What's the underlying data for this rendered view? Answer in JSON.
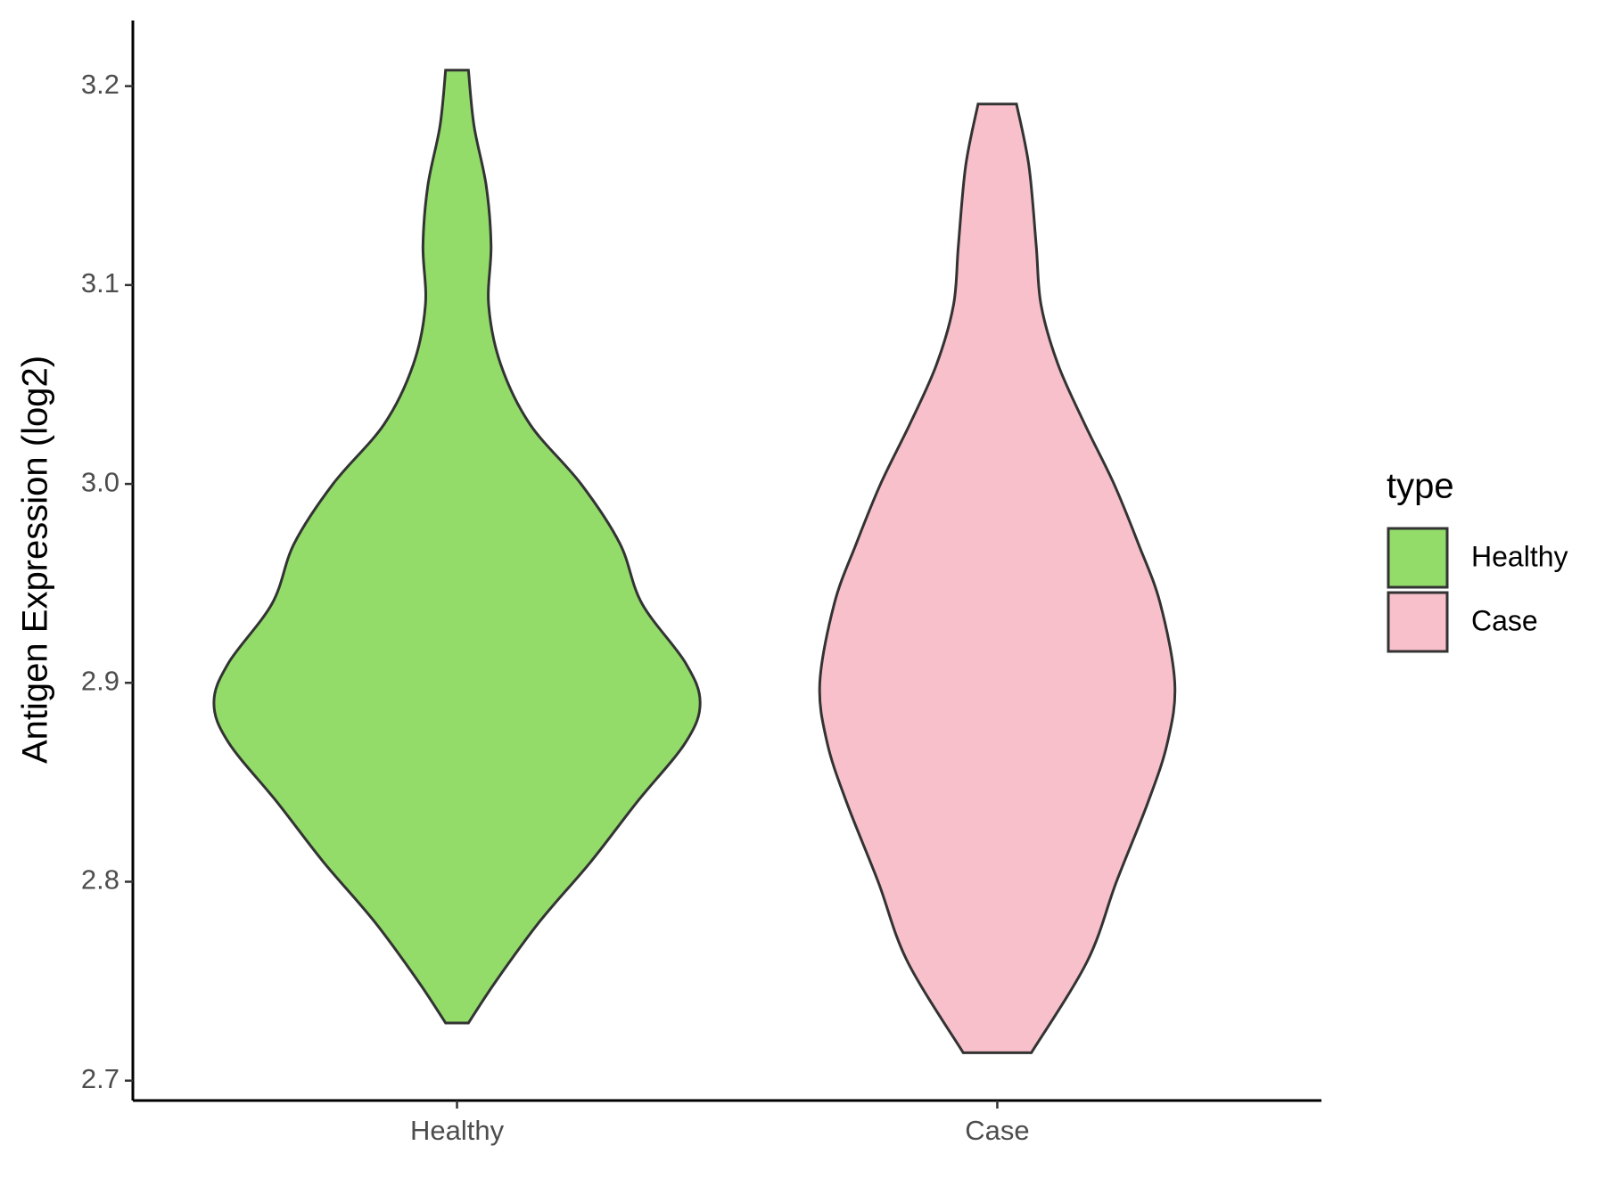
{
  "chart_data": {
    "type": "violin",
    "y_label": "Antigen Expression (log2)",
    "categories": [
      "Healthy",
      "Case"
    ],
    "ylim": [
      2.69,
      3.233
    ],
    "yticks": [
      {
        "value": 2.7,
        "label": "2.7"
      },
      {
        "value": 2.8,
        "label": "2.8"
      },
      {
        "value": 2.9,
        "label": "2.9"
      },
      {
        "value": 3.0,
        "label": "3.0"
      },
      {
        "value": 3.1,
        "label": "3.1"
      },
      {
        "value": 3.2,
        "label": "3.2"
      }
    ],
    "legend": {
      "title": "type",
      "position": "right"
    },
    "series": [
      {
        "name": "Healthy",
        "color": "#93dc6a",
        "y": [
          3.208,
          3.18,
          3.15,
          3.12,
          3.09,
          3.06,
          3.03,
          3.0,
          2.97,
          2.94,
          2.91,
          2.89,
          2.87,
          2.84,
          2.81,
          2.78,
          2.75,
          2.729
        ],
        "density": [
          0.047,
          0.07,
          0.12,
          0.14,
          0.13,
          0.18,
          0.3,
          0.51,
          0.67,
          0.76,
          0.94,
          1.0,
          0.94,
          0.74,
          0.55,
          0.34,
          0.16,
          0.047
        ]
      },
      {
        "name": "Case",
        "color": "#f8c0cb",
        "y": [
          3.191,
          3.16,
          3.12,
          3.09,
          3.06,
          3.03,
          3.0,
          2.97,
          2.94,
          2.9,
          2.87,
          2.84,
          2.8,
          2.76,
          2.714
        ],
        "density": [
          0.079,
          0.13,
          0.16,
          0.18,
          0.25,
          0.36,
          0.48,
          0.58,
          0.67,
          0.73,
          0.7,
          0.62,
          0.49,
          0.37,
          0.14
        ]
      }
    ]
  }
}
